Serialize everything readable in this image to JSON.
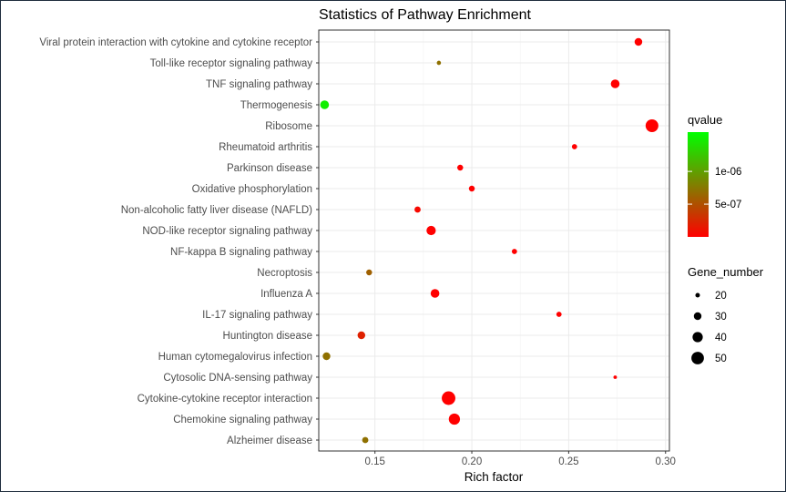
{
  "chart_data": {
    "type": "scatter",
    "title": "Statistics of Pathway Enrichment",
    "xlabel": "Rich factor",
    "ylabel": "",
    "xlim": [
      0.121,
      0.302
    ],
    "xticks": [
      0.15,
      0.2,
      0.25,
      0.3
    ],
    "xtick_labels": [
      "0.15",
      "0.20",
      "0.25",
      "0.30"
    ],
    "grid": true,
    "legend_position": "right",
    "categories": [
      "Viral protein interaction with cytokine and cytokine receptor",
      "Toll-like receptor signaling pathway",
      "TNF signaling pathway",
      "Thermogenesis",
      "Ribosome",
      "Rheumatoid arthritis",
      "Parkinson disease",
      "Oxidative phosphorylation",
      "Non-alcoholic fatty liver disease (NAFLD)",
      "NOD-like receptor signaling pathway",
      "NF-kappa B signaling pathway",
      "Necroptosis",
      "Influenza A",
      "IL-17 signaling pathway",
      "Huntington disease",
      "Human cytomegalovirus infection",
      "Cytosolic DNA-sensing pathway",
      "Cytokine-cytokine receptor interaction",
      "Chemokine signaling pathway",
      "Alzheimer disease"
    ],
    "points": [
      {
        "pathway": "Viral protein interaction with cytokine and cytokine receptor",
        "rich_factor": 0.286,
        "gene_number": 30,
        "qvalue": 1e-09
      },
      {
        "pathway": "Toll-like receptor signaling pathway",
        "rich_factor": 0.183,
        "gene_number": 19,
        "qvalue": 7e-07
      },
      {
        "pathway": "TNF signaling pathway",
        "rich_factor": 0.274,
        "gene_number": 34,
        "qvalue": 1e-09
      },
      {
        "pathway": "Thermogenesis",
        "rich_factor": 0.124,
        "gene_number": 34,
        "qvalue": 1.5e-06
      },
      {
        "pathway": "Ribosome",
        "rich_factor": 0.293,
        "gene_number": 51,
        "qvalue": 1e-09
      },
      {
        "pathway": "Rheumatoid arthritis",
        "rich_factor": 0.253,
        "gene_number": 22,
        "qvalue": 1e-09
      },
      {
        "pathway": "Parkinson disease",
        "rich_factor": 0.194,
        "gene_number": 24,
        "qvalue": 1e-09
      },
      {
        "pathway": "Oxidative phosphorylation",
        "rich_factor": 0.2,
        "gene_number": 24,
        "qvalue": 1e-09
      },
      {
        "pathway": "Non-alcoholic fatty liver disease (NAFLD)",
        "rich_factor": 0.172,
        "gene_number": 25,
        "qvalue": 5e-08
      },
      {
        "pathway": "NOD-like receptor signaling pathway",
        "rich_factor": 0.179,
        "gene_number": 36,
        "qvalue": 1e-09
      },
      {
        "pathway": "NF-kappa B signaling pathway",
        "rich_factor": 0.222,
        "gene_number": 22,
        "qvalue": 1e-09
      },
      {
        "pathway": "Necroptosis",
        "rich_factor": 0.147,
        "gene_number": 24,
        "qvalue": 6e-07
      },
      {
        "pathway": "Influenza A",
        "rich_factor": 0.181,
        "gene_number": 34,
        "qvalue": 1e-09
      },
      {
        "pathway": "IL-17 signaling pathway",
        "rich_factor": 0.245,
        "gene_number": 22,
        "qvalue": 1e-09
      },
      {
        "pathway": "Huntington disease",
        "rich_factor": 0.143,
        "gene_number": 30,
        "qvalue": 2e-07
      },
      {
        "pathway": "Human cytomegalovirus infection",
        "rich_factor": 0.125,
        "gene_number": 30,
        "qvalue": 7e-07
      },
      {
        "pathway": "Cytosolic DNA-sensing pathway",
        "rich_factor": 0.274,
        "gene_number": 17,
        "qvalue": 1e-09
      },
      {
        "pathway": "Cytokine-cytokine receptor interaction",
        "rich_factor": 0.188,
        "gene_number": 55,
        "qvalue": 1e-09
      },
      {
        "pathway": "Chemokine signaling pathway",
        "rich_factor": 0.191,
        "gene_number": 44,
        "qvalue": 1e-09
      },
      {
        "pathway": "Alzheimer disease",
        "rich_factor": 0.145,
        "gene_number": 25,
        "qvalue": 7e-07
      }
    ],
    "color_legend": {
      "title": "qvalue",
      "min": 0,
      "max": 1.6e-06,
      "breaks": [
        5e-07,
        1e-06
      ],
      "break_labels": [
        "5e-07",
        "1e-06"
      ],
      "low_color": "#ff0000",
      "high_color": "#00ff00"
    },
    "size_legend": {
      "title": "Gene_number",
      "values": [
        20,
        30,
        40,
        50
      ],
      "labels": [
        "20",
        "30",
        "40",
        "50"
      ],
      "color": "#000000"
    },
    "colors": {
      "panel_border": "#333333",
      "grid": "#ebebeb",
      "frame": "#1f2d3d"
    }
  }
}
